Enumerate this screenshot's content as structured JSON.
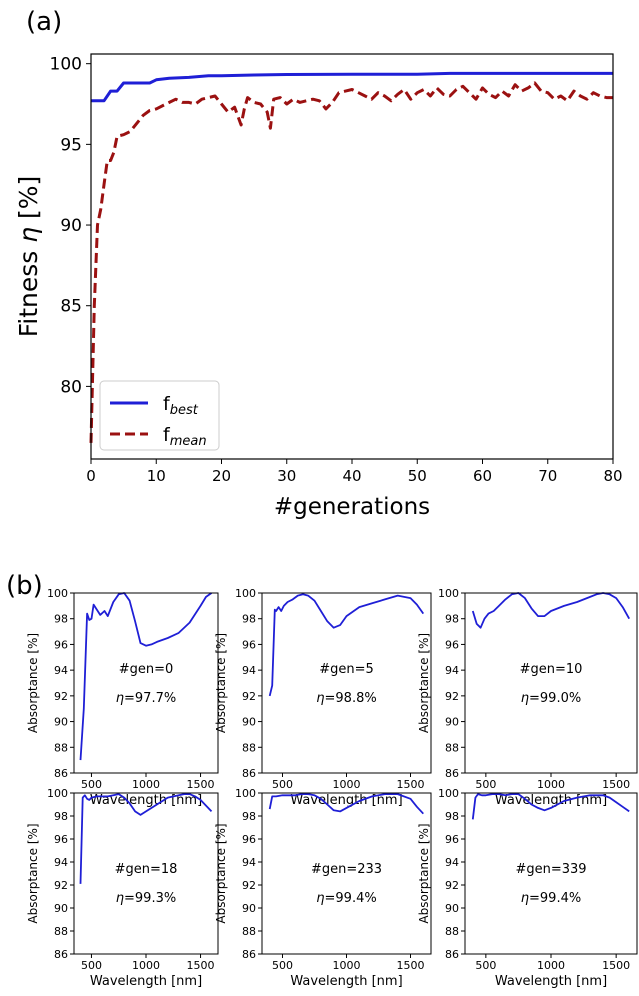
{
  "panel_a": {
    "label": "(a)",
    "chart_data": {
      "type": "line",
      "xlabel": "#generations",
      "ylabel_main": "Fitness ",
      "ylabel_symbol": "η",
      "ylabel_unit": " [%]",
      "xlim": [
        0,
        80
      ],
      "ylim": [
        75.5,
        100.6
      ],
      "xticks": [
        0,
        10,
        20,
        30,
        40,
        50,
        60,
        70,
        80
      ],
      "yticks": [
        80,
        85,
        90,
        95,
        100
      ],
      "legend_position": "bottom-left",
      "series": [
        {
          "name_main": "f",
          "name_sub": "best",
          "color": "#1f1fd6",
          "style": "solid",
          "x": [
            0,
            1,
            2,
            3,
            4,
            5,
            6,
            7,
            8,
            9,
            10,
            12,
            15,
            18,
            20,
            25,
            30,
            40,
            50,
            55,
            60,
            70,
            80
          ],
          "y": [
            97.7,
            97.7,
            97.7,
            98.3,
            98.3,
            98.8,
            98.8,
            98.8,
            98.8,
            98.8,
            99.0,
            99.1,
            99.15,
            99.25,
            99.25,
            99.3,
            99.33,
            99.35,
            99.35,
            99.4,
            99.4,
            99.4,
            99.4
          ]
        },
        {
          "name_main": "f",
          "name_sub": "mean",
          "color": "#9b1111",
          "style": "dashed",
          "x": [
            0,
            0.5,
            1,
            1.5,
            2,
            2.5,
            3,
            3.5,
            4,
            5,
            6,
            7,
            8,
            9,
            10,
            11,
            12,
            13,
            14,
            15,
            16,
            17,
            18,
            19,
            20,
            21,
            22,
            23,
            23.5,
            24,
            25,
            26,
            27,
            27.5,
            28,
            29,
            30,
            31,
            32,
            33,
            34,
            35,
            36,
            37,
            38,
            39,
            40,
            41,
            42,
            43,
            44,
            45,
            46,
            47,
            48,
            49,
            50,
            51,
            52,
            53,
            54,
            55,
            56,
            57,
            58,
            59,
            60,
            61,
            62,
            63,
            64,
            65,
            66,
            67,
            68,
            69,
            70,
            71,
            72,
            73,
            74,
            75,
            76,
            77,
            78,
            79,
            80
          ],
          "y": [
            76.5,
            85.0,
            90.0,
            91.0,
            92.5,
            94.0,
            94.0,
            94.5,
            95.5,
            95.6,
            95.8,
            96.3,
            96.8,
            97.1,
            97.2,
            97.4,
            97.6,
            97.8,
            97.6,
            97.6,
            97.5,
            97.8,
            97.9,
            98.0,
            97.5,
            97.0,
            97.3,
            96.2,
            97.2,
            97.9,
            97.6,
            97.5,
            97.0,
            96.0,
            97.8,
            97.9,
            97.5,
            97.8,
            97.6,
            97.7,
            97.8,
            97.7,
            97.2,
            97.6,
            98.2,
            98.3,
            98.4,
            98.2,
            98.0,
            97.8,
            98.2,
            98.0,
            97.7,
            98.1,
            98.4,
            97.8,
            98.2,
            98.4,
            98.0,
            98.5,
            98.1,
            98.0,
            98.4,
            98.6,
            98.2,
            97.8,
            98.5,
            98.1,
            97.9,
            98.3,
            98.0,
            98.7,
            98.3,
            98.5,
            98.8,
            98.3,
            98.2,
            97.8,
            98.0,
            97.7,
            98.3,
            98.0,
            97.8,
            98.2,
            98.0,
            97.9,
            97.9
          ]
        }
      ]
    }
  },
  "panel_b": {
    "label": "(b)",
    "chart_data": {
      "type": "line",
      "xlabel": "Wavelength [nm]",
      "ylabel": "Absorptance [%]",
      "xlim": [
        340,
        1660
      ],
      "ylim": [
        86,
        100
      ],
      "xticks": [
        500,
        1000,
        1500
      ],
      "yticks": [
        86,
        88,
        90,
        92,
        94,
        96,
        98,
        100
      ],
      "line_color": "#1f1fd6",
      "eta_symbol": "η",
      "subplots": [
        {
          "gen_label": "#gen=0",
          "eta_value": "=97.7%",
          "x": [
            400,
            430,
            460,
            480,
            500,
            520,
            550,
            580,
            620,
            650,
            700,
            750,
            800,
            850,
            900,
            950,
            1000,
            1050,
            1100,
            1200,
            1300,
            1400,
            1500,
            1550,
            1600
          ],
          "y": [
            87.0,
            91.0,
            98.4,
            97.9,
            98.0,
            99.1,
            98.7,
            98.3,
            98.6,
            98.2,
            99.3,
            99.9,
            100.0,
            99.4,
            97.8,
            96.1,
            95.9,
            96.0,
            96.2,
            96.5,
            96.9,
            97.7,
            99.0,
            99.7,
            100.0
          ]
        },
        {
          "gen_label": "#gen=5",
          "eta_value": "=98.8%",
          "x": [
            400,
            420,
            440,
            450,
            470,
            490,
            510,
            540,
            580,
            620,
            660,
            700,
            750,
            800,
            850,
            900,
            950,
            1000,
            1100,
            1200,
            1300,
            1400,
            1500,
            1550,
            1600
          ],
          "y": [
            92.0,
            92.8,
            98.7,
            98.6,
            98.9,
            98.6,
            99.0,
            99.3,
            99.5,
            99.8,
            99.9,
            99.8,
            99.4,
            98.6,
            97.8,
            97.3,
            97.5,
            98.2,
            98.9,
            99.2,
            99.5,
            99.8,
            99.6,
            99.1,
            98.4
          ]
        },
        {
          "gen_label": "#gen=10",
          "eta_value": "=99.0%",
          "x": [
            400,
            430,
            460,
            490,
            520,
            560,
            600,
            650,
            700,
            750,
            800,
            850,
            900,
            950,
            1000,
            1100,
            1200,
            1300,
            1350,
            1400,
            1450,
            1500,
            1550,
            1600
          ],
          "y": [
            98.6,
            97.6,
            97.3,
            98.0,
            98.4,
            98.6,
            99.0,
            99.5,
            99.9,
            100.0,
            99.6,
            98.8,
            98.2,
            98.2,
            98.6,
            99.0,
            99.3,
            99.7,
            99.9,
            100.0,
            99.9,
            99.6,
            98.9,
            98.0
          ]
        },
        {
          "gen_label": "#gen=18",
          "eta_value": "=99.3%",
          "x": [
            400,
            420,
            440,
            460,
            480,
            500,
            550,
            600,
            650,
            700,
            750,
            800,
            850,
            900,
            950,
            1000,
            1100,
            1200,
            1300,
            1350,
            1400,
            1450,
            1500,
            1550,
            1600
          ],
          "y": [
            92.1,
            99.6,
            99.8,
            99.5,
            99.4,
            99.6,
            99.7,
            99.7,
            99.7,
            99.8,
            99.9,
            99.6,
            99.1,
            98.4,
            98.1,
            98.4,
            99.0,
            99.6,
            99.8,
            99.9,
            99.9,
            99.7,
            99.4,
            98.9,
            98.4
          ]
        },
        {
          "gen_label": "#gen=233",
          "eta_value": "=99.4%",
          "x": [
            400,
            420,
            450,
            500,
            550,
            600,
            650,
            700,
            750,
            800,
            850,
            900,
            950,
            1000,
            1100,
            1200,
            1300,
            1400,
            1500,
            1550,
            1600
          ],
          "y": [
            98.6,
            99.7,
            99.7,
            99.8,
            99.8,
            99.8,
            99.9,
            99.9,
            99.8,
            99.5,
            99.0,
            98.5,
            98.4,
            98.7,
            99.3,
            99.7,
            99.9,
            99.9,
            99.5,
            98.8,
            98.2
          ]
        },
        {
          "gen_label": "#gen=339",
          "eta_value": "=99.4%",
          "x": [
            400,
            420,
            440,
            470,
            500,
            550,
            600,
            650,
            700,
            750,
            800,
            850,
            900,
            950,
            1000,
            1100,
            1200,
            1300,
            1400,
            1450,
            1500,
            1550,
            1600
          ],
          "y": [
            97.7,
            99.6,
            99.9,
            99.8,
            99.8,
            99.9,
            99.9,
            99.8,
            99.9,
            99.9,
            99.5,
            99.0,
            98.7,
            98.5,
            98.7,
            99.3,
            99.6,
            99.8,
            99.8,
            99.6,
            99.2,
            98.8,
            98.4
          ]
        }
      ]
    }
  }
}
